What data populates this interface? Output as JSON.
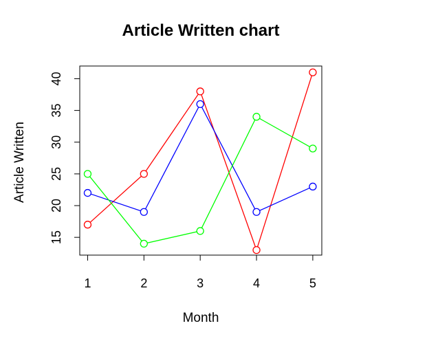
{
  "chart_data": {
    "type": "line",
    "title": "Article Written chart",
    "xlabel": "Month",
    "ylabel": "Article Written",
    "x": [
      1,
      2,
      3,
      4,
      5
    ],
    "xlim": [
      0.86,
      5.16
    ],
    "ylim": [
      12.2,
      42.0
    ],
    "xticks": [
      "1",
      "2",
      "3",
      "4",
      "5"
    ],
    "yticks": [
      "15",
      "20",
      "25",
      "30",
      "35",
      "40"
    ],
    "grid": false,
    "legend": "none",
    "markers": "open-circle",
    "series": [
      {
        "color": "#ff0000",
        "values": [
          17,
          25,
          38,
          13,
          41
        ]
      },
      {
        "color": "#0000ff",
        "values": [
          22,
          19,
          36,
          19,
          23
        ]
      },
      {
        "color": "#00ff00",
        "values": [
          25,
          14,
          16,
          34,
          29
        ]
      }
    ]
  }
}
